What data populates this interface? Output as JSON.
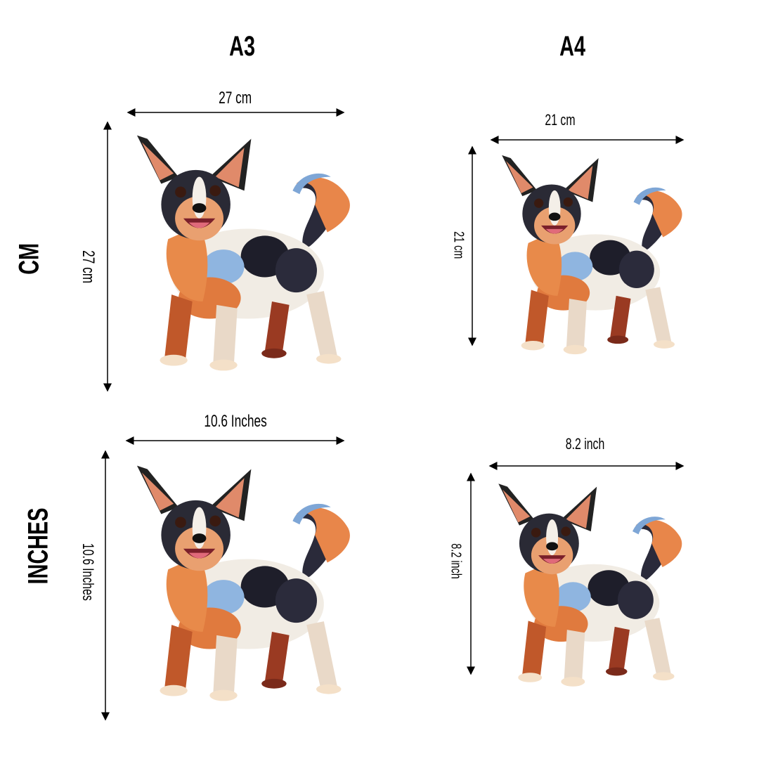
{
  "columns": {
    "a3": "A3",
    "a4": "A4"
  },
  "rows": {
    "cm": "CM",
    "inches": "INCHES"
  },
  "dimensions": {
    "a3_cm_width": "27 cm",
    "a3_cm_height": "27 cm",
    "a4_cm_width": "21 cm",
    "a4_cm_height": "21 cm",
    "a3_in_width": "10.6  Inches",
    "a3_in_height": "10.6 Inches",
    "a4_in_width": "8.2 inch",
    "a4_in_height": "8.2 inch"
  },
  "image": {
    "subject": "chihuahua-illustration"
  }
}
